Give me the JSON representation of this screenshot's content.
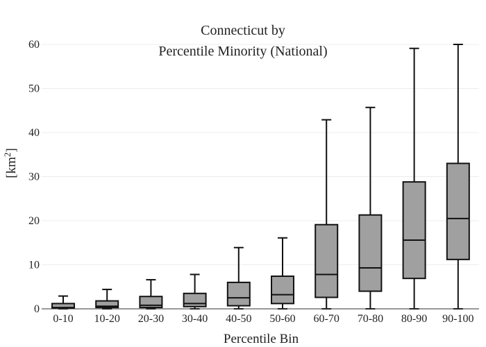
{
  "chart_data": {
    "type": "box",
    "title_lines": [
      "Connecticut  by",
      "Percentile Minority (National)"
    ],
    "xlabel": "Percentile Bin",
    "ylabel_text": "[km",
    "ylabel_sup": "2",
    "ylabel_close": "]",
    "ylim": [
      0,
      60
    ],
    "yticks": [
      0,
      10,
      20,
      30,
      40,
      50,
      60
    ],
    "ytick_labels": [
      "0",
      "10",
      "20",
      "30",
      "40",
      "50",
      "60"
    ],
    "categories": [
      "0-10",
      "10-20",
      "20-30",
      "30-40",
      "40-50",
      "50-60",
      "60-70",
      "70-80",
      "80-90",
      "90-100"
    ],
    "boxes": [
      {
        "min": 0.0,
        "q1": 0.2,
        "median": 0.3,
        "q3": 1.2,
        "max": 2.9
      },
      {
        "min": 0.0,
        "q1": 0.3,
        "median": 0.6,
        "q3": 1.8,
        "max": 4.4
      },
      {
        "min": 0.0,
        "q1": 0.3,
        "median": 0.8,
        "q3": 2.8,
        "max": 6.6
      },
      {
        "min": 0.0,
        "q1": 0.5,
        "median": 1.2,
        "q3": 3.5,
        "max": 7.8
      },
      {
        "min": 0.0,
        "q1": 0.7,
        "median": 2.5,
        "q3": 6.0,
        "max": 13.9
      },
      {
        "min": 0.0,
        "q1": 1.2,
        "median": 3.2,
        "q3": 7.4,
        "max": 16.1
      },
      {
        "min": 0.0,
        "q1": 2.6,
        "median": 7.8,
        "q3": 19.1,
        "max": 42.9
      },
      {
        "min": 0.0,
        "q1": 4.0,
        "median": 9.3,
        "q3": 21.3,
        "max": 45.7
      },
      {
        "min": 0.0,
        "q1": 6.9,
        "median": 15.6,
        "q3": 28.8,
        "max": 59.1
      },
      {
        "min": 0.0,
        "q1": 11.2,
        "median": 20.5,
        "q3": 33.0,
        "max": 60.0
      }
    ],
    "grid": true,
    "legend": "none",
    "colors": {
      "box_fill": "#a0a0a0",
      "box_stroke": "#111111",
      "gridline": "#ececec",
      "axis": "#333333"
    }
  }
}
